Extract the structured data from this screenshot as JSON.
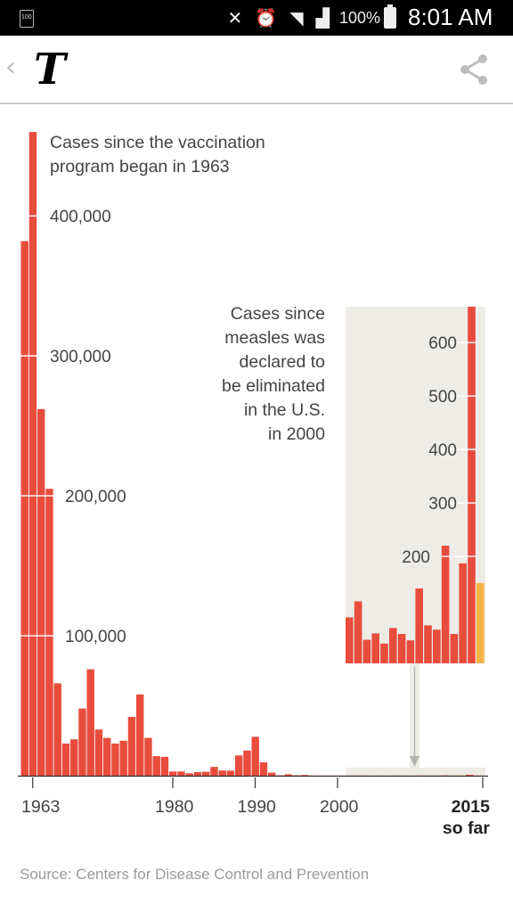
{
  "status_bar": {
    "notification_badge": "100",
    "battery_percent": "100%",
    "time": "8:01 AM",
    "icons": [
      "mute-icon",
      "alarm-icon",
      "wifi-icon",
      "signal-icon",
      "battery-icon"
    ]
  },
  "nav": {
    "back_glyph": "‹",
    "logo_text": "T",
    "share_icon": "share-icon"
  },
  "colors": {
    "bar": "#e84c3d",
    "bar_partial": "#f5b247",
    "inset_bg": "#eeece6",
    "grid_line": "#ffffff",
    "axis": "#333333",
    "label": "#444444"
  },
  "chart_data": [
    {
      "type": "bar",
      "title": "Cases since the vaccination program began in 1963",
      "title_lines": [
        "Cases since the vaccination",
        "program began in 1963"
      ],
      "x_start_year": 1962,
      "tick_labels": [
        {
          "year": 1963,
          "label": "1963",
          "bold": false
        },
        {
          "year": 1980,
          "label": "1980",
          "bold": false
        },
        {
          "year": 1990,
          "label": "1990",
          "bold": false
        },
        {
          "year": 2000,
          "label": "2000",
          "bold": false
        },
        {
          "year": 2015,
          "label": "2015",
          "sublabel": "so far",
          "bold": true
        }
      ],
      "y_ticks": [
        {
          "value": 100000,
          "label": "100,000"
        },
        {
          "value": 200000,
          "label": "200,000"
        },
        {
          "value": 300000,
          "label": "300,000"
        },
        {
          "value": 400000,
          "label": "400,000"
        }
      ],
      "ylim": [
        0,
        460000
      ],
      "values": [
        382000,
        460000,
        262000,
        205000,
        66000,
        23000,
        26000,
        48000,
        76000,
        33000,
        27000,
        23000,
        25000,
        42000,
        58000,
        27000,
        14000,
        13500,
        3000,
        3000,
        1700,
        2600,
        2800,
        6300,
        3700,
        3600,
        14500,
        18000,
        27800,
        9600,
        2200,
        300,
        950,
        310,
        500,
        140,
        100,
        90,
        100,
        60,
        86,
        116,
        44,
        56,
        37,
        66,
        55,
        43,
        140,
        71,
        63,
        220,
        55,
        187,
        667,
        150
      ]
    },
    {
      "type": "bar",
      "title": "Cases since measles was declared to be eliminated in the U.S. in 2000",
      "title_lines": [
        "Cases since",
        "measles was",
        "declared to",
        "be eliminated",
        "in the U.S.",
        "in 2000"
      ],
      "x_start_year": 2000,
      "y_ticks": [
        {
          "value": 200,
          "label": "200"
        },
        {
          "value": 300,
          "label": "300"
        },
        {
          "value": 400,
          "label": "400"
        },
        {
          "value": 500,
          "label": "500"
        },
        {
          "value": 600,
          "label": "600"
        }
      ],
      "ylim": [
        0,
        667
      ],
      "values": [
        86,
        116,
        44,
        56,
        37,
        66,
        55,
        43,
        140,
        71,
        63,
        220,
        55,
        187,
        667,
        150
      ],
      "partial_year": 2015
    }
  ],
  "source": "Source: Centers for Disease Control and Prevention"
}
